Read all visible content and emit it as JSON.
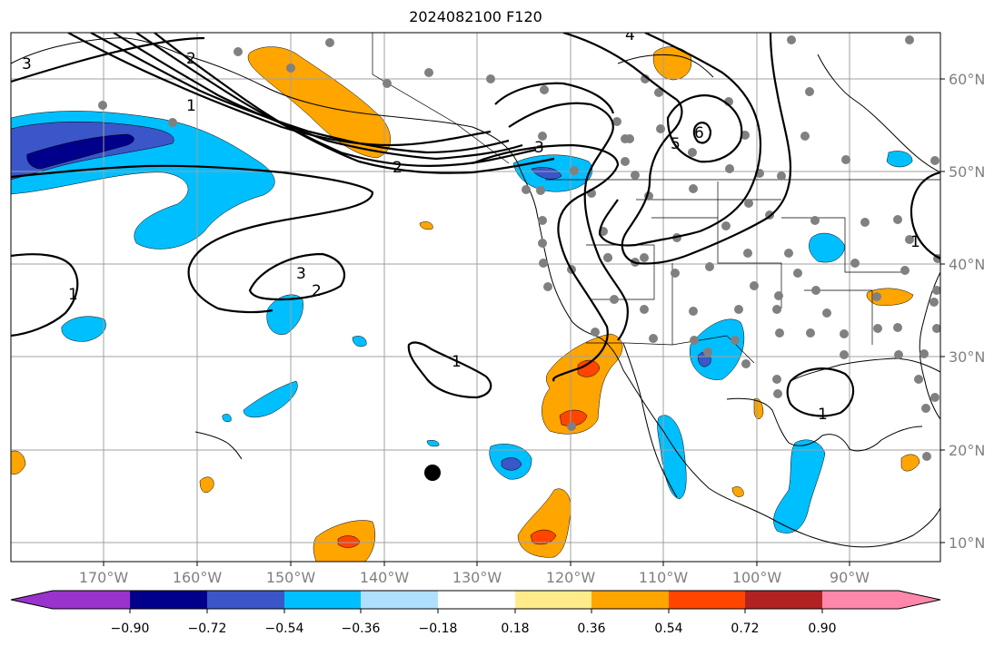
{
  "title": "2024082100 F120",
  "colors": {
    "neg_very_strong": "#9933cc",
    "neg_strong": "#00008b",
    "neg_mod_strong": "#3a56c8",
    "neg_mod": "#00bfff",
    "neg_weak": "#b0e0ff",
    "neutral": "#ffffff",
    "pos_weak": "#ffeb8a",
    "pos_mod": "#ffa500",
    "pos_mod_strong": "#ff4500",
    "pos_strong": "#b22222",
    "pos_very_strong": "#ff88aa",
    "station_dot": "#808080",
    "grid": "#a0a0a0",
    "contour": "#000000"
  },
  "longitude_labels": [
    "170°W",
    "160°W",
    "150°W",
    "140°W",
    "130°W",
    "120°W",
    "110°W",
    "100°W",
    "90°W"
  ],
  "latitude_labels": [
    "60°N",
    "50°N",
    "40°N",
    "30°N",
    "20°N",
    "10°N"
  ],
  "colorbar": {
    "tick_labels": [
      "−0.90",
      "−0.72",
      "−0.54",
      "−0.36",
      "−0.18",
      "0.18",
      "0.36",
      "0.54",
      "0.72",
      "0.90"
    ]
  },
  "contour_labels": [
    "1",
    "2",
    "3",
    "4",
    "5",
    "6",
    "3",
    "2",
    "1",
    "3",
    "2",
    "1",
    "1",
    "1"
  ]
}
